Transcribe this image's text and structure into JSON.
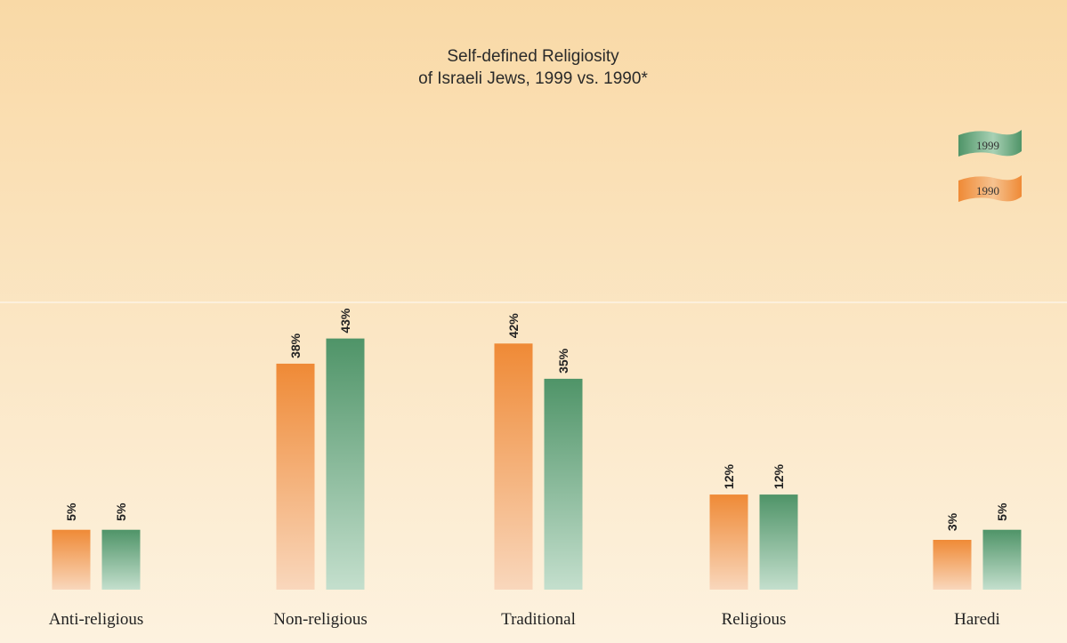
{
  "chart_data": {
    "type": "bar",
    "title_lines": [
      "Self-defined Religiosity",
      "of Israeli Jews, 1999 vs. 1990*"
    ],
    "categories": [
      "Anti-religious",
      "Non-religious",
      "Traditional",
      "Religious",
      "Haredi"
    ],
    "series": [
      {
        "name": "1990",
        "color": "#ef8a36",
        "values": [
          5,
          38,
          42,
          12,
          3
        ]
      },
      {
        "name": "1999",
        "color": "#4f9468",
        "values": [
          5,
          43,
          35,
          12,
          5
        ]
      }
    ],
    "data_labels": [
      [
        "5%",
        "38%",
        "42%",
        "12%",
        "3%"
      ],
      [
        "5%",
        "43%",
        "35%",
        "12%",
        "5%"
      ]
    ],
    "legend": {
      "placement": "top-right",
      "order": [
        "1999",
        "1990"
      ]
    },
    "grid": false
  }
}
